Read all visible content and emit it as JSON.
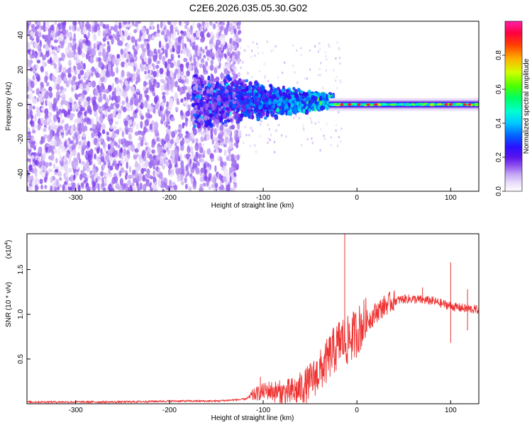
{
  "title": "C2E6.2026.035.05.30.G02",
  "colors": {
    "snr_line": "#ee3333",
    "colorscale": [
      "#ffffff",
      "#e6d6fa",
      "#b48cf2",
      "#7a36ea",
      "#3a00f0",
      "#0050ff",
      "#00b4ff",
      "#00ffe0",
      "#00ff6a",
      "#9cff00",
      "#ffd200",
      "#ff5a00",
      "#ff0040",
      "#ff00a0"
    ]
  },
  "chart_data": [
    {
      "type": "heatmap",
      "xlabel": "Height of straight line (km)",
      "ylabel": "Frequency (Hz)",
      "xlim": [
        -352,
        130
      ],
      "ylim": [
        -50,
        48
      ],
      "x_ticks": [
        "-300",
        "-200",
        "-100",
        "0",
        "100"
      ],
      "y_ticks": [
        "-40",
        "-20",
        "0",
        "20",
        "40"
      ],
      "colorbar": {
        "label": "Normalized spectral amplitude",
        "range": [
          0,
          1
        ],
        "ticks": [
          "0.0",
          "0.2",
          "0.4",
          "0.6",
          "0.8"
        ]
      },
      "description_of_structure": {
        "noise_region_x": [
          -352,
          -125
        ],
        "transition_region_x": [
          -175,
          -25
        ],
        "signal_line_freq_hz": 0,
        "signal_region_x": [
          -30,
          130
        ]
      }
    },
    {
      "type": "line",
      "xlabel": "Height of straight line (km)",
      "ylabel": "SNR (10 * v/v)",
      "y_multiplier": "(x10",
      "y_multiplier_exp": "4",
      "y_multiplier_close": ")",
      "xlim": [
        -352,
        130
      ],
      "ylim": [
        0,
        1.9
      ],
      "x_ticks": [
        "-300",
        "-200",
        "-100",
        "0",
        "100"
      ],
      "y_ticks": [
        "0.5",
        "1.0",
        "1.5"
      ],
      "series": [
        {
          "x": [
            -352,
            -300,
            -250,
            -200,
            -150,
            -120,
            -105,
            -95,
            -85,
            -75,
            -65,
            -55,
            -45,
            -35,
            -28,
            -22,
            -18,
            -15,
            -12,
            -8,
            -4,
            0,
            5,
            10,
            15,
            20,
            25,
            30,
            35,
            40,
            50,
            60,
            70,
            80,
            90,
            98,
            105,
            112,
            120,
            130
          ],
          "y": [
            0.02,
            0.02,
            0.02,
            0.03,
            0.03,
            0.05,
            0.12,
            0.15,
            0.13,
            0.12,
            0.14,
            0.2,
            0.3,
            0.42,
            0.55,
            0.62,
            0.7,
            0.72,
            0.68,
            0.72,
            0.76,
            0.8,
            0.88,
            0.92,
            0.96,
            1.02,
            1.06,
            1.1,
            1.13,
            1.15,
            1.17,
            1.17,
            1.16,
            1.15,
            1.12,
            1.1,
            1.08,
            1.07,
            1.06,
            1.05
          ]
        }
      ],
      "spikes": [
        {
          "x": -13,
          "y": 1.92
        },
        {
          "x": -25,
          "y": 0.85
        },
        {
          "x": -21,
          "y": 0.78
        },
        {
          "x": -8,
          "y": 0.9
        },
        {
          "x": -103,
          "y": 0.3
        },
        {
          "x": 70,
          "y": 1.3
        },
        {
          "x": 100,
          "y": 1.58
        },
        {
          "x": 118,
          "y": 1.28
        },
        {
          "x": 100,
          "y": 0.68
        },
        {
          "x": 118,
          "y": 0.82
        }
      ]
    }
  ]
}
